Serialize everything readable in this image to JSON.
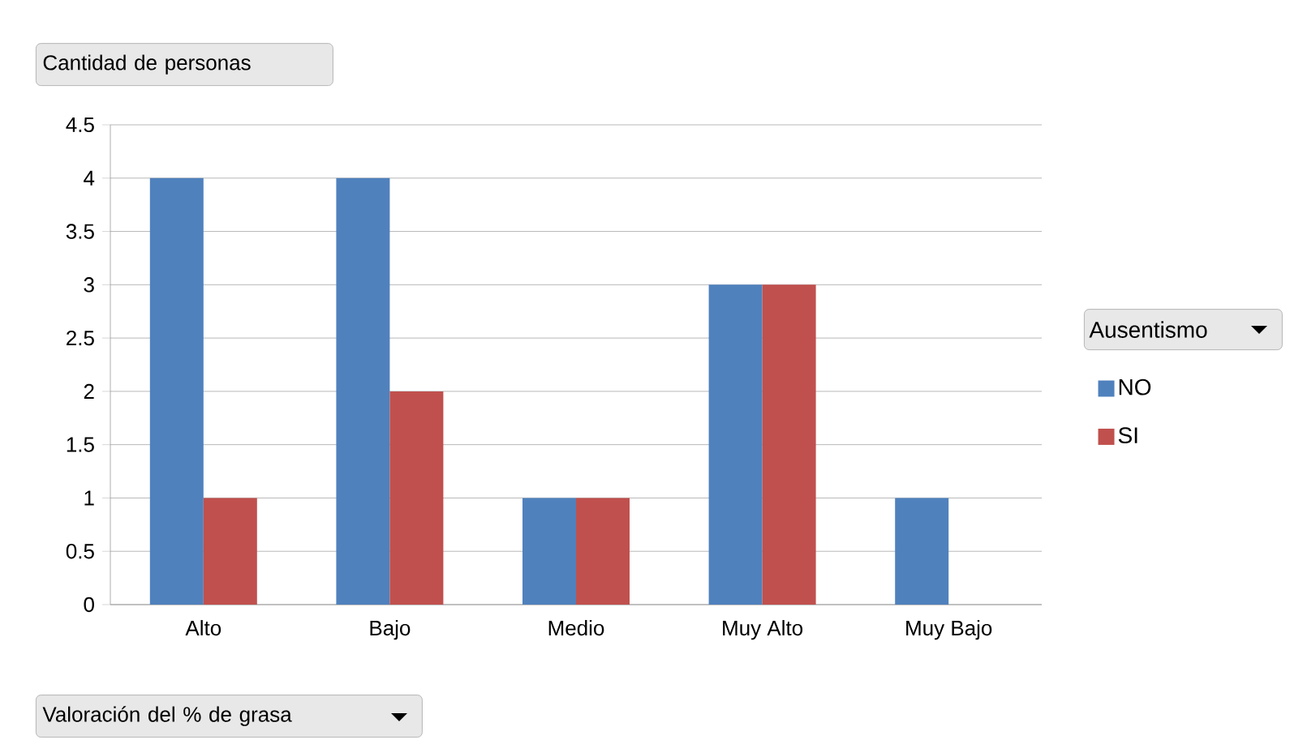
{
  "chart_data": {
    "type": "bar",
    "ylabel": "Cantidad de personas",
    "xlabel": "Valoración del % de grasa",
    "legend_title": "Ausentismo",
    "categories": [
      "Alto",
      "Bajo",
      "Medio",
      "Muy Alto",
      "Muy Bajo"
    ],
    "series": [
      {
        "name": "NO",
        "color": "#4f81bd",
        "values": [
          4,
          4,
          1,
          3,
          1
        ]
      },
      {
        "name": "SI",
        "color": "#c0504d",
        "values": [
          1,
          2,
          1,
          3,
          null
        ]
      }
    ],
    "ylim": [
      0,
      4.5
    ],
    "yticks": [
      0,
      0.5,
      1,
      1.5,
      2,
      2.5,
      3,
      3.5,
      4,
      4.5
    ],
    "grid": "y",
    "legend": "right"
  }
}
